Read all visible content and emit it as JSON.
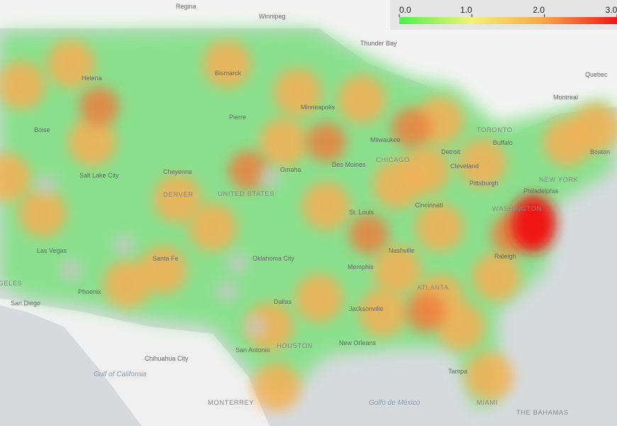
{
  "colorbar": {
    "lim": [
      0,
      3
    ],
    "ticks": [
      {
        "value": 0,
        "label": "0.0"
      },
      {
        "value": 1,
        "label": "1.0"
      },
      {
        "value": 2,
        "label": "2.0"
      },
      {
        "value": 3,
        "label": "3.0"
      }
    ]
  },
  "places": [
    "Regina",
    "Winnipeg",
    "Thunder Bay",
    "Quebec",
    "Montreal",
    "TORONTO",
    "Buffalo",
    "Boston",
    "NEW YORK",
    "Philadelphia",
    "WASHINGTON",
    "Pittsburgh",
    "Cleveland",
    "Detroit",
    "CHICAGO",
    "Milwaukee",
    "Minneapolis",
    "Des Moines",
    "St. Louis",
    "Cincinnati",
    "Nashville",
    "Memphis",
    "ATLANTA",
    "Raleigh",
    "Jacksonville",
    "New Orleans",
    "HOUSTON",
    "San Antonio",
    "Dallas",
    "Oklahoma City",
    "Omaha",
    "Bismarck",
    "Pierre",
    "Helena",
    "Boise",
    "Salt Lake City",
    "Cheyenne",
    "DENVER",
    "UNITED STATES",
    "Santa Fe",
    "Las Vegas",
    "Phoenix",
    "San Diego",
    "LOS ANGELES",
    "Tampa",
    "MIAMI",
    "THE BAHAMAS",
    "Chihuahua City",
    "MONTERREY",
    "Gulf of California",
    "Golfo de México"
  ]
}
